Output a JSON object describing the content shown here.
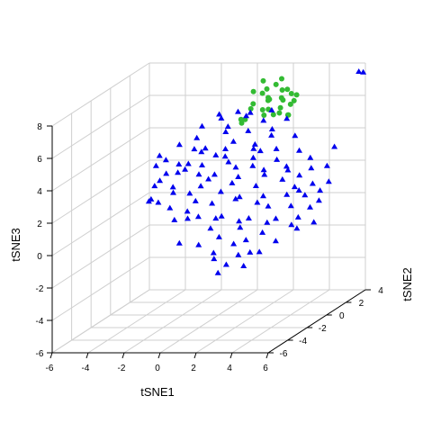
{
  "colors": {
    "background": "#ffffff",
    "grid": "#cfcfcf",
    "axis": "#000000",
    "series_blue": "#0000ee",
    "series_green": "#33bb33"
  },
  "chart_data": {
    "type": "scatter3d",
    "title": "",
    "xlabel": "tSNE1",
    "ylabel": "tSNE2",
    "zlabel": "tSNE3",
    "xlim": [
      -6,
      6
    ],
    "ylim": [
      -6,
      4
    ],
    "zlim": [
      -6,
      8
    ],
    "x_ticks": [
      "-6",
      "-4",
      "-2",
      "0",
      "2",
      "4",
      "6"
    ],
    "y_ticks": [
      "-6",
      "-4",
      "-2",
      "0",
      "2",
      "4"
    ],
    "z_ticks": [
      "-6",
      "-4",
      "-2",
      "0",
      "2",
      "4",
      "6",
      "8"
    ],
    "grid": true,
    "legend": "none",
    "series": [
      {
        "marker": "circle",
        "color": "#33bb33",
        "points": [
          [
            1.9,
            1.0,
            7.3
          ],
          [
            2.2,
            0.9,
            7.6
          ],
          [
            2.6,
            1.1,
            7.8
          ],
          [
            3.0,
            1.0,
            7.5
          ],
          [
            3.4,
            1.2,
            7.2
          ],
          [
            2.4,
            0.8,
            7.0
          ],
          [
            2.8,
            1.3,
            6.9
          ],
          [
            3.2,
            0.7,
            7.0
          ],
          [
            1.6,
            0.6,
            6.8
          ],
          [
            2.0,
            1.4,
            6.7
          ],
          [
            3.6,
            1.1,
            6.8
          ],
          [
            2.5,
            0.5,
            6.5
          ],
          [
            2.9,
            1.0,
            6.4
          ],
          [
            3.3,
            1.3,
            6.5
          ],
          [
            1.8,
            1.2,
            6.2
          ],
          [
            2.2,
            0.6,
            6.1
          ],
          [
            3.0,
            0.7,
            6.2
          ],
          [
            3.5,
            0.6,
            7.7
          ],
          [
            1.4,
            1.0,
            7.4
          ],
          [
            2.7,
            1.5,
            8.0
          ],
          [
            0.8,
            0.9,
            5.5
          ],
          [
            0.6,
            1.2,
            5.6
          ],
          [
            1.1,
            0.7,
            5.8
          ],
          [
            2.4,
            1.2,
            5.9
          ],
          [
            3.1,
            1.4,
            5.8
          ],
          [
            2.0,
            0.9,
            8.1
          ],
          [
            3.8,
            1.0,
            7.2
          ],
          [
            2.6,
            0.3,
            7.3
          ],
          [
            1.2,
            1.1,
            6.3
          ],
          [
            3.4,
            0.9,
            6.0
          ]
        ]
      },
      {
        "marker": "triangle",
        "color": "#0000ee",
        "points": [
          [
            -4.1,
            1.4,
            0.4
          ],
          [
            -4.5,
            1.4,
            0.6
          ],
          [
            -4.3,
            0.8,
            0.7
          ],
          [
            -3.5,
            1.1,
            2.3
          ],
          [
            -3.3,
            0.7,
            3.3
          ],
          [
            -2.9,
            1.3,
            2.8
          ],
          [
            -2.8,
            0.5,
            1.7
          ],
          [
            -2.4,
            1.0,
            2.6
          ],
          [
            -2.0,
            0.6,
            3.1
          ],
          [
            -1.9,
            1.5,
            2.1
          ],
          [
            -1.4,
            0.9,
            2.9
          ],
          [
            -1.2,
            0.4,
            1.8
          ],
          [
            -0.8,
            1.2,
            3.4
          ],
          [
            -0.6,
            0.7,
            2.4
          ],
          [
            -0.2,
            1.4,
            2.9
          ],
          [
            0.1,
            0.5,
            3.6
          ],
          [
            0.5,
            1.1,
            2.1
          ],
          [
            0.8,
            0.3,
            3.0
          ],
          [
            1.2,
            1.3,
            2.7
          ],
          [
            1.5,
            0.8,
            3.4
          ],
          [
            1.9,
            1.2,
            2.2
          ],
          [
            2.3,
            0.4,
            2.8
          ],
          [
            2.7,
            1.0,
            3.2
          ],
          [
            3.1,
            1.4,
            2.4
          ],
          [
            3.4,
            0.7,
            2.9
          ],
          [
            3.9,
            1.1,
            2.2
          ],
          [
            4.2,
            0.5,
            1.5
          ],
          [
            4.5,
            1.2,
            2.6
          ],
          [
            4.8,
            0.8,
            1.8
          ],
          [
            5.1,
            1.0,
            1.3
          ],
          [
            -3.0,
            0.9,
            1.2
          ],
          [
            -2.3,
            1.3,
            1.0
          ],
          [
            -1.6,
            0.6,
            0.8
          ],
          [
            -0.9,
            1.0,
            0.5
          ],
          [
            -0.3,
            0.8,
            1.3
          ],
          [
            0.3,
            1.2,
            0.7
          ],
          [
            0.9,
            0.5,
            1.1
          ],
          [
            1.4,
            1.4,
            0.4
          ],
          [
            2.0,
            0.9,
            1.0
          ],
          [
            2.6,
            0.3,
            0.6
          ],
          [
            3.2,
            1.1,
            1.0
          ],
          [
            3.7,
            0.6,
            0.5
          ],
          [
            4.1,
            1.3,
            0.9
          ],
          [
            4.6,
            0.9,
            0.3
          ],
          [
            5.2,
            0.7,
            0.8
          ],
          [
            -2.6,
            0.8,
            4.2
          ],
          [
            -1.8,
            1.1,
            4.5
          ],
          [
            -1.0,
            0.5,
            4.1
          ],
          [
            -0.3,
            1.3,
            4.8
          ],
          [
            0.4,
            0.8,
            4.4
          ],
          [
            1.0,
            1.2,
            4.9
          ],
          [
            1.7,
            0.6,
            4.3
          ],
          [
            2.4,
            1.0,
            4.7
          ],
          [
            3.0,
            0.4,
            4.1
          ],
          [
            3.6,
            1.2,
            4.6
          ],
          [
            -1.4,
            0.9,
            5.3
          ],
          [
            -0.6,
            1.4,
            5.6
          ],
          [
            0.2,
            0.6,
            5.4
          ],
          [
            1.0,
            1.0,
            5.9
          ],
          [
            1.8,
            1.3,
            5.5
          ],
          [
            2.6,
            0.7,
            5.2
          ],
          [
            3.2,
            1.1,
            5.7
          ],
          [
            0.6,
            0.9,
            6.2
          ],
          [
            1.5,
            0.5,
            6.3
          ],
          [
            2.2,
            1.4,
            6.1
          ],
          [
            -0.5,
            1.0,
            6.0
          ],
          [
            4.0,
            0.9,
            3.8
          ],
          [
            -3.8,
            1.0,
            1.9
          ],
          [
            -3.6,
            0.6,
            3.6
          ],
          [
            -2.1,
            1.4,
            3.7
          ],
          [
            -1.5,
            0.7,
            -0.2
          ],
          [
            -0.8,
            1.2,
            -0.5
          ],
          [
            -0.1,
            0.5,
            -0.1
          ],
          [
            0.6,
            1.0,
            -0.6
          ],
          [
            1.3,
            0.7,
            -0.3
          ],
          [
            2.0,
            1.3,
            -0.8
          ],
          [
            2.7,
            0.9,
            -0.4
          ],
          [
            3.4,
            1.2,
            -0.9
          ],
          [
            4.1,
            0.6,
            -0.2
          ],
          [
            4.7,
            1.1,
            -0.7
          ],
          [
            -2.2,
            0.9,
            -0.4
          ],
          [
            -3.1,
            1.2,
            -0.6
          ],
          [
            -1.2,
            1.4,
            -1.2
          ],
          [
            -0.4,
            0.8,
            -1.5
          ],
          [
            0.5,
            1.3,
            -1.1
          ],
          [
            1.2,
            0.6,
            -1.6
          ],
          [
            1.9,
            1.0,
            -1.3
          ],
          [
            2.8,
            0.7,
            -1.7
          ],
          [
            3.6,
            1.4,
            -1.2
          ],
          [
            -2.5,
            0.6,
            -1.8
          ],
          [
            -1.7,
            1.1,
            -2.1
          ],
          [
            -0.6,
            0.6,
            -2.4
          ],
          [
            0.3,
            1.0,
            -2.0
          ],
          [
            1.1,
            1.2,
            -2.6
          ],
          [
            2.0,
            0.5,
            -2.3
          ],
          [
            -0.9,
            1.2,
            -3.0
          ],
          [
            0.0,
            0.8,
            -3.2
          ],
          [
            0.8,
            1.1,
            -3.4
          ],
          [
            -0.3,
            0.5,
            -3.6
          ],
          [
            0.4,
            1.3,
            -2.8
          ],
          [
            5.6,
            0.8,
            2.9
          ],
          [
            5.9,
            1.0,
            4.0
          ],
          [
            5.8,
            0.6,
            2.0
          ],
          [
            7.2,
            1.1,
            8.6
          ],
          [
            7.5,
            1.0,
            8.6
          ],
          [
            -3.4,
            1.3,
            0.1
          ],
          [
            -2.0,
            0.5,
            0.2
          ],
          [
            -1.1,
            1.0,
            2.0
          ],
          [
            0.0,
            1.4,
            1.6
          ],
          [
            1.7,
            0.7,
            1.7
          ],
          [
            2.9,
            1.2,
            1.9
          ],
          [
            3.8,
            0.8,
            1.6
          ],
          [
            -0.1,
            0.9,
            3.9
          ],
          [
            1.3,
            1.2,
            3.8
          ],
          [
            2.0,
            0.6,
            3.9
          ],
          [
            -1.6,
            1.2,
            3.6
          ],
          [
            -2.8,
            1.0,
            2.4
          ],
          [
            4.4,
            1.3,
            3.2
          ],
          [
            -3.9,
            0.8,
            2.9
          ],
          [
            -4.2,
            1.2,
            1.5
          ]
        ]
      }
    ]
  }
}
